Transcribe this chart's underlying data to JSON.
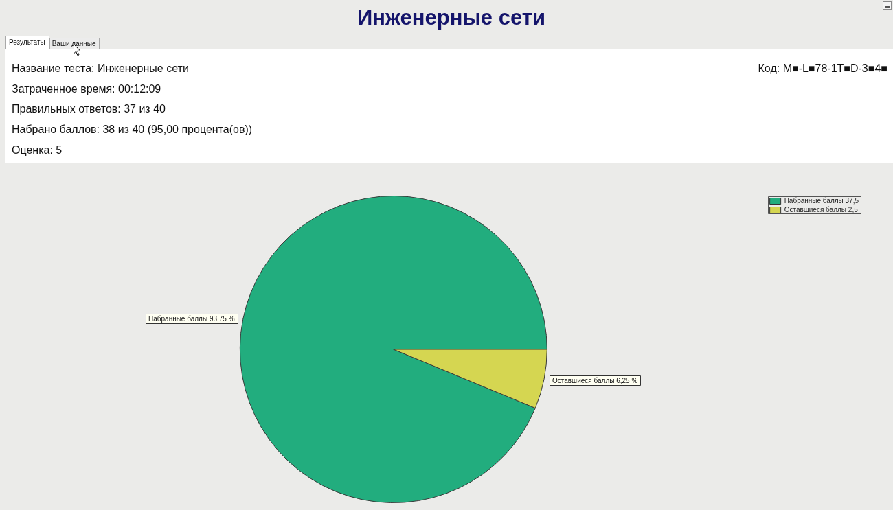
{
  "chart_data": {
    "type": "pie",
    "title": "Инженерные сети",
    "categories": [
      "Набранные баллы 37,5",
      "Оставшиеся баллы 2,5"
    ],
    "values": [
      93.75,
      6.25
    ],
    "colors": [
      "#22ad7e",
      "#d5d651"
    ],
    "value_labels": [
      "Набранные баллы 93,75 %",
      "Оставшиеся баллы 6,25 %"
    ],
    "legend": "top right",
    "annotations": [
      "Результаты",
      "Ваши данные",
      "Название теста: Инженерные сети",
      "Затраченное время: 00:12:09",
      "Правильных ответов: 37 из 40",
      "Набрано баллов: 38 из 40 (95,00 процента(ов))",
      "Оценка: 5",
      "Код: M■-L■78-1T■D-3■4■"
    ]
  }
}
